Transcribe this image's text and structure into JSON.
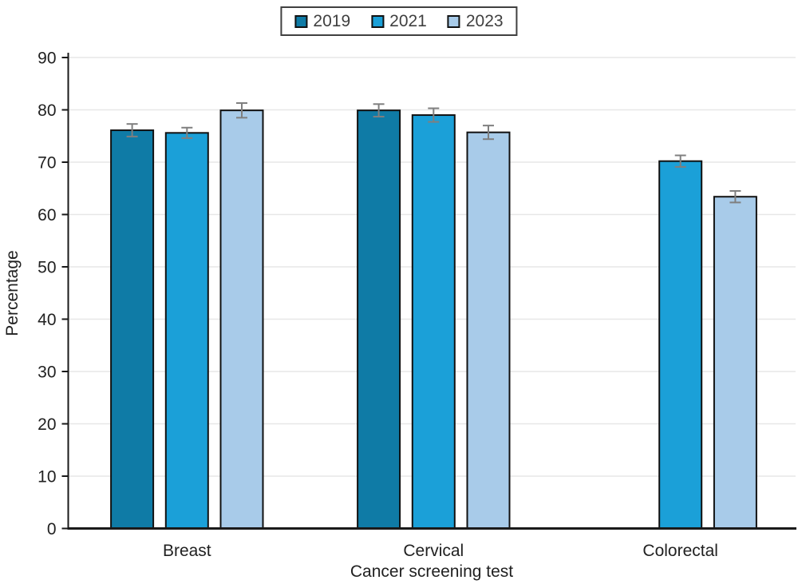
{
  "chart_data": {
    "type": "bar",
    "title": "",
    "xlabel": "Cancer screening test",
    "ylabel": "Percentage",
    "categories": [
      "Breast",
      "Cervical",
      "Colorectal"
    ],
    "series": [
      {
        "name": "2019",
        "color": "#0f7ba6",
        "values": [
          76.1,
          79.9,
          null
        ],
        "errors": [
          1.2,
          1.2,
          null
        ]
      },
      {
        "name": "2021",
        "color": "#1ba0d8",
        "values": [
          75.6,
          79.0,
          70.2
        ],
        "errors": [
          1.0,
          1.3,
          1.1
        ]
      },
      {
        "name": "2023",
        "color": "#a8cbe9",
        "values": [
          79.9,
          75.7,
          63.4
        ],
        "errors": [
          1.4,
          1.3,
          1.1
        ]
      }
    ],
    "ylim": [
      0,
      90
    ],
    "yticks": [
      0,
      10,
      20,
      30,
      40,
      50,
      60,
      70,
      80,
      90
    ],
    "grid": "horizontal",
    "gridline_color": "#e7e7e7",
    "axis_color": "#1a1a1a",
    "bar_border_color": "#111111",
    "error_bar_color": "#7f7f7f",
    "text_color": "#212121",
    "legend_position": "top-center",
    "error_bars": true
  }
}
